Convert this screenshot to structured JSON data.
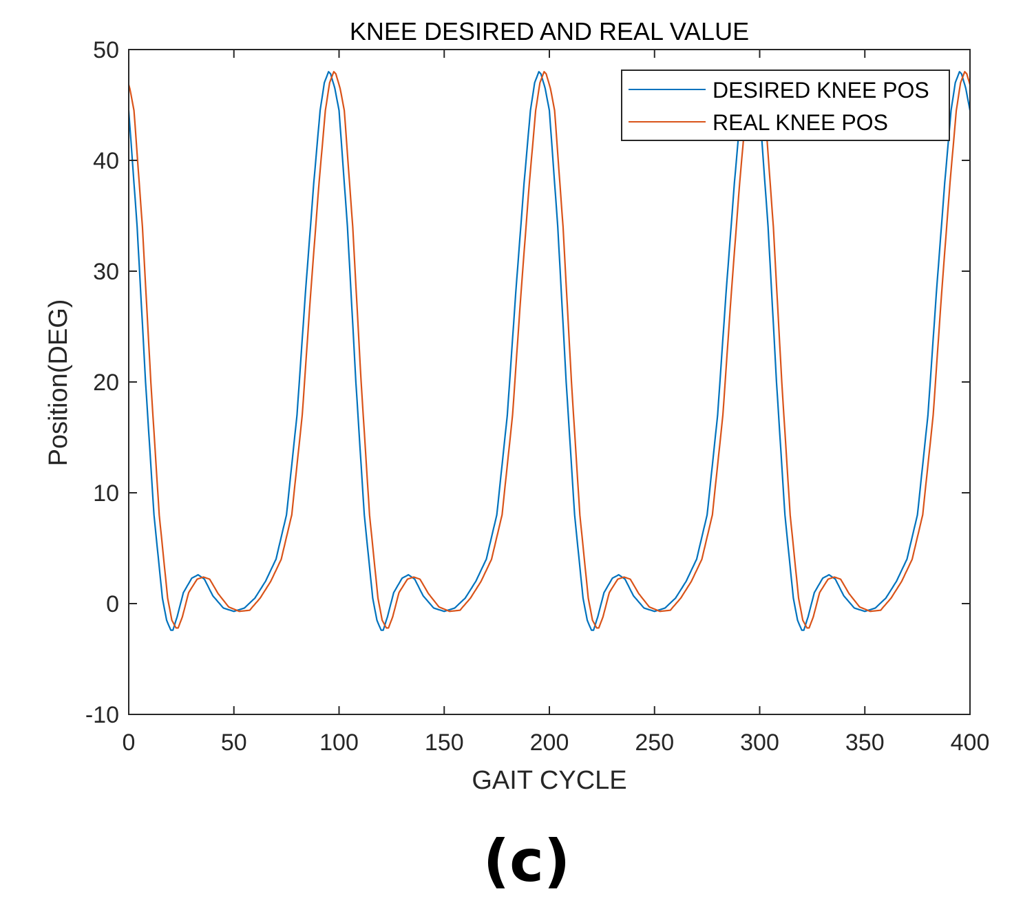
{
  "chart_data": {
    "type": "line",
    "title": "KNEE DESIRED AND REAL VALUE",
    "xlabel": "GAIT CYCLE",
    "ylabel": "Position(DEG)",
    "xlim": [
      0,
      400
    ],
    "ylim": [
      -10,
      50
    ],
    "xticks": [
      0,
      50,
      100,
      150,
      200,
      250,
      300,
      350,
      400
    ],
    "yticks": [
      -10,
      0,
      10,
      20,
      30,
      40,
      50
    ],
    "xtick_labels": [
      "0",
      "50",
      "100",
      "150",
      "200",
      "250",
      "300",
      "350",
      "400"
    ],
    "ytick_labels": [
      "-10",
      "0",
      "10",
      "20",
      "30",
      "40",
      "50"
    ],
    "grid": false,
    "legend_position": "top-right",
    "cycle_length": 100,
    "series": [
      {
        "name": "DESIRED KNEE POS",
        "color": "#0072BD",
        "offset": 0,
        "cycle_profile": {
          "x": [
            0,
            4,
            8,
            12,
            16,
            18,
            20,
            21,
            23,
            26,
            30,
            33,
            36,
            40,
            45,
            50,
            55,
            60,
            65,
            70,
            75,
            80,
            84,
            88,
            91,
            93,
            95,
            96,
            98,
            100
          ],
          "y": [
            44.5,
            34,
            20,
            8,
            0.5,
            -1.5,
            -2.4,
            -2.4,
            -1.2,
            1,
            2.3,
            2.6,
            2.2,
            0.7,
            -0.4,
            -0.7,
            -0.4,
            0.5,
            2,
            4,
            8,
            17,
            28,
            38,
            44.5,
            47,
            48,
            47.8,
            46.5,
            44.5
          ]
        }
      },
      {
        "name": "REAL KNEE POS",
        "color": "#D95319",
        "offset": 2.5,
        "cycle_profile": {
          "x": [
            0,
            4,
            8,
            12,
            16,
            18,
            20,
            21,
            23,
            26,
            30,
            33,
            36,
            40,
            45,
            50,
            55,
            60,
            65,
            70,
            75,
            80,
            84,
            88,
            91,
            93,
            95,
            96,
            98,
            100
          ],
          "y": [
            44.5,
            34,
            20,
            8,
            0.5,
            -1.5,
            -2.2,
            -2.2,
            -1.2,
            1,
            2.2,
            2.4,
            2.2,
            0.9,
            -0.3,
            -0.7,
            -0.6,
            0.5,
            2,
            4,
            8,
            17,
            28,
            38,
            44.5,
            47,
            48,
            47.8,
            46.5,
            44.5
          ]
        }
      }
    ]
  },
  "panel_label": "(c)"
}
